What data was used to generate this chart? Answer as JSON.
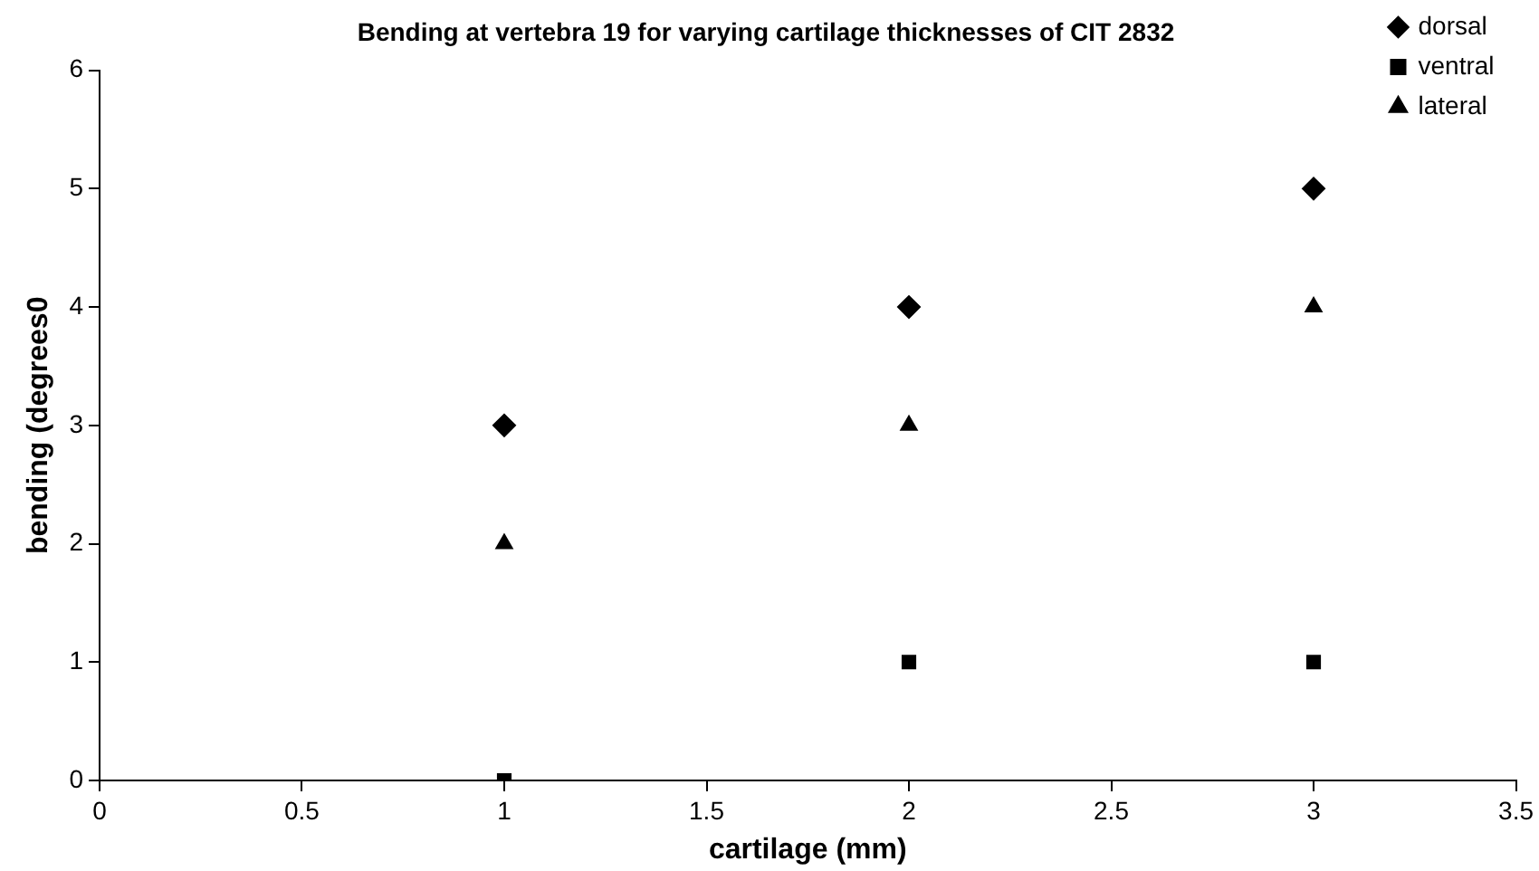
{
  "chart_data": {
    "type": "scatter",
    "title": "Bending at vertebra 19 for varying cartilage thicknesses of CIT 2832",
    "xlabel": "cartilage (mm)",
    "ylabel": "bending (degrees0",
    "series": [
      {
        "name": "dorsal",
        "color": "#000000",
        "marker": "diamond",
        "x": [
          1,
          2,
          3
        ],
        "values": [
          3,
          4,
          5
        ]
      },
      {
        "name": "ventral",
        "color": "#000000",
        "marker": "square",
        "x": [
          1,
          2,
          3
        ],
        "values": [
          0,
          1,
          1
        ]
      },
      {
        "name": "lateral",
        "color": "#000000",
        "marker": "triangle",
        "x": [
          1,
          2,
          3
        ],
        "values": [
          2,
          3,
          4
        ]
      }
    ],
    "xlim": [
      0,
      3.5
    ],
    "xticks": [
      0,
      0.5,
      1,
      1.5,
      2,
      2.5,
      3,
      3.5
    ],
    "ylim": [
      0,
      6
    ],
    "yticks": [
      0,
      1,
      2,
      3,
      4,
      5,
      6
    ],
    "grid": false,
    "legend": "top right"
  }
}
